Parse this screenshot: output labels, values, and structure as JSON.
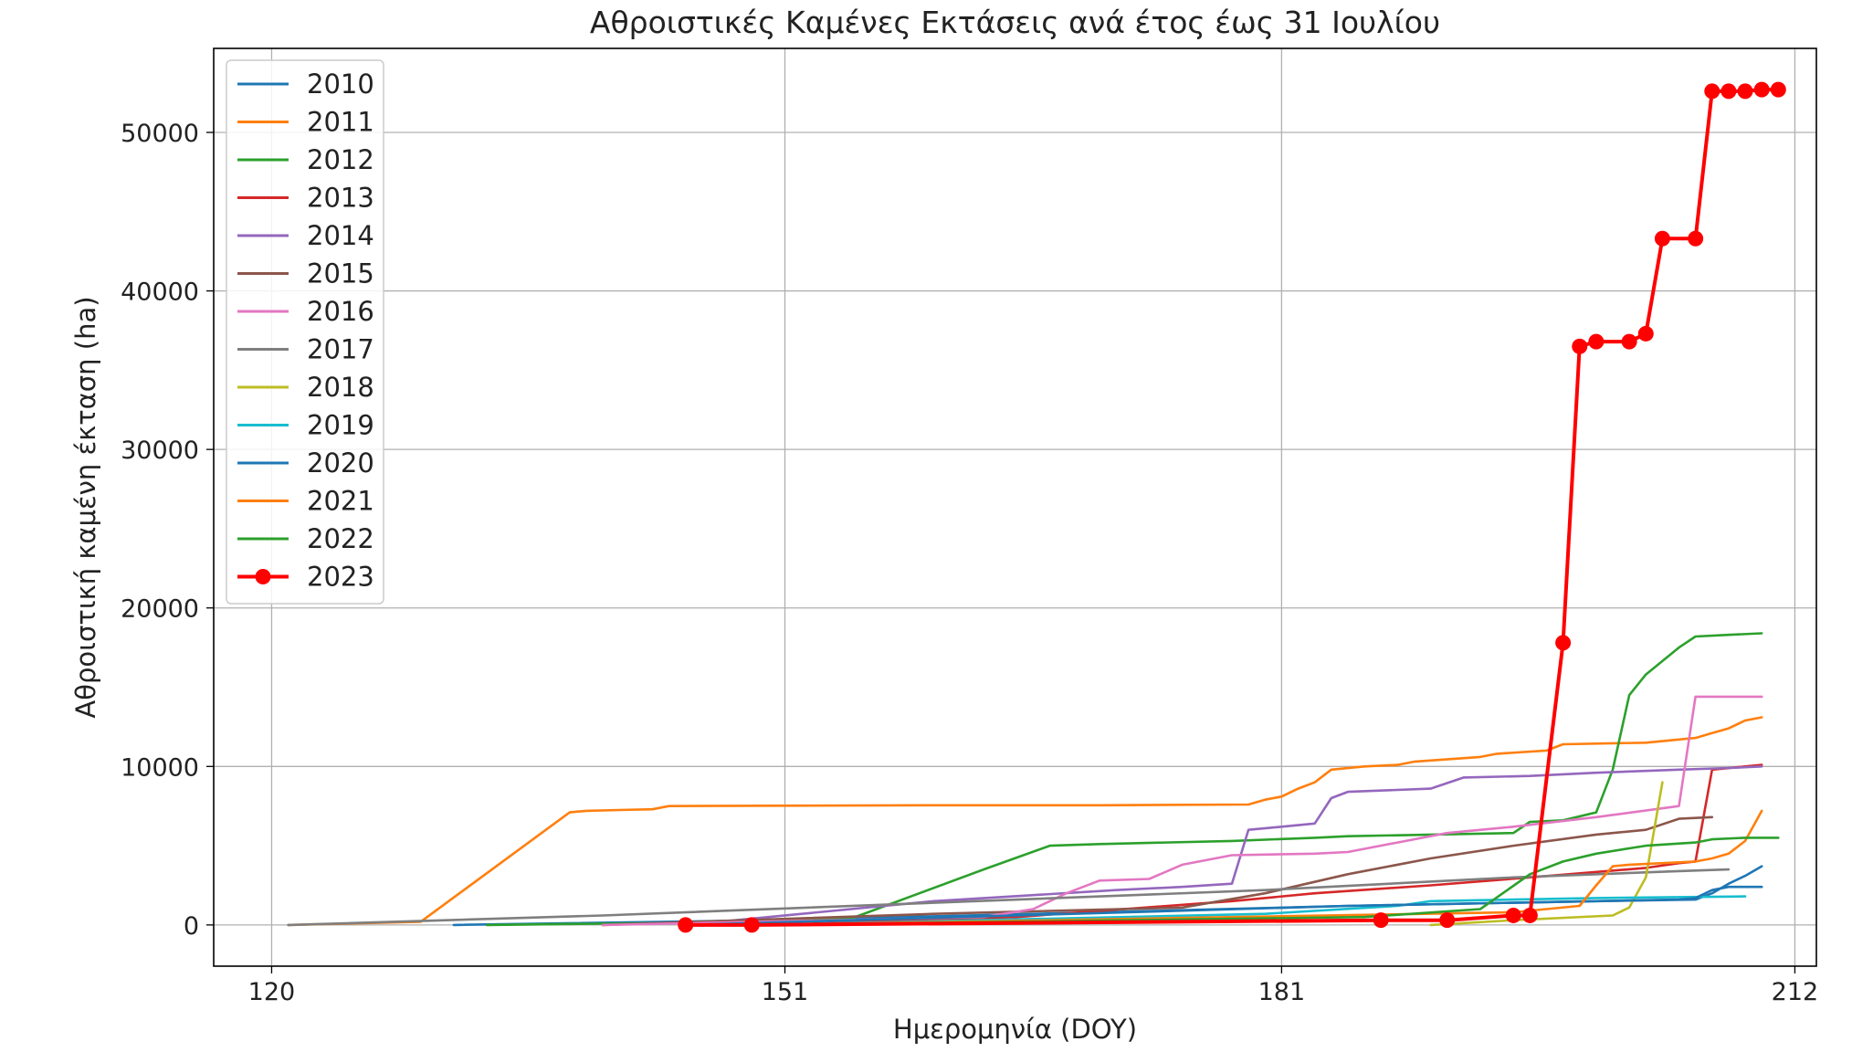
{
  "chart_data": {
    "type": "line",
    "title": "Αθροιστικές Καμένες Εκτάσεις ανά έτος έως 31 Ιουλίου",
    "xlabel": "Ημερομηνία (DOY)",
    "ylabel": "Αθροιστική καμένη έκταση (ha)",
    "xlim": [
      116.5,
      213.3
    ],
    "ylim": [
      -2600,
      55300
    ],
    "xticks": [
      120,
      151,
      181,
      212
    ],
    "yticks": [
      0,
      10000,
      20000,
      30000,
      40000,
      50000
    ],
    "xtick_labels": [
      "120",
      "151",
      "181",
      "212"
    ],
    "ytick_labels": [
      "0",
      "10000",
      "20000",
      "30000",
      "40000",
      "50000"
    ],
    "grid": true,
    "legend_position": "upper-left",
    "series": [
      {
        "name": "2010",
        "color": "#1f77b4",
        "markers": false,
        "x": [
          131,
          150,
          170,
          185,
          200,
          206,
          207,
          208,
          209,
          210
        ],
        "y": [
          0,
          300,
          800,
          1200,
          1500,
          1600,
          2000,
          2600,
          3100,
          3700
        ]
      },
      {
        "name": "2011",
        "color": "#ff7f0e",
        "markers": false,
        "x": [
          121,
          129,
          138,
          139,
          141,
          143,
          144,
          160,
          170,
          179,
          180,
          181,
          182,
          183,
          184,
          186,
          188,
          189,
          193,
          194,
          197,
          198,
          203,
          206,
          207,
          208,
          209,
          210
        ],
        "y": [
          0,
          200,
          7100,
          7200,
          7250,
          7300,
          7500,
          7550,
          7550,
          7600,
          7900,
          8100,
          8600,
          9000,
          9800,
          10000,
          10100,
          10300,
          10600,
          10800,
          11000,
          11400,
          11500,
          11800,
          12100,
          12400,
          12900,
          13100
        ]
      },
      {
        "name": "2012",
        "color": "#2ca02c",
        "markers": false,
        "x": [
          133,
          150,
          155,
          163,
          167,
          170,
          178,
          183,
          185,
          195,
          196,
          198,
          200,
          201,
          202,
          203,
          205,
          206,
          208,
          210
        ],
        "y": [
          0,
          200,
          400,
          3500,
          5000,
          5100,
          5300,
          5500,
          5600,
          5800,
          6500,
          6600,
          7100,
          9800,
          14500,
          15800,
          17500,
          18200,
          18300,
          18400
        ]
      },
      {
        "name": "2013",
        "color": "#d62728",
        "markers": false,
        "x": [
          150,
          165,
          178,
          183,
          190,
          196,
          203,
          205,
          206,
          207,
          209,
          210
        ],
        "y": [
          0,
          500,
          1500,
          2000,
          2500,
          3000,
          3600,
          3900,
          4000,
          9800,
          10000,
          10100
        ]
      },
      {
        "name": "2014",
        "color": "#9467bd",
        "markers": false,
        "x": [
          145,
          160,
          171,
          175,
          178,
          179,
          181,
          183,
          184,
          185,
          190,
          192,
          196,
          200,
          205,
          208,
          210
        ],
        "y": [
          0,
          1500,
          2200,
          2400,
          2600,
          6000,
          6200,
          6400,
          8000,
          8400,
          8600,
          9300,
          9400,
          9600,
          9800,
          9900,
          10000
        ]
      },
      {
        "name": "2015",
        "color": "#8c564b",
        "markers": false,
        "x": [
          140,
          160,
          175,
          180,
          185,
          190,
          195,
          200,
          203,
          205,
          207
        ],
        "y": [
          0,
          700,
          1100,
          2000,
          3200,
          4200,
          5000,
          5700,
          6000,
          6700,
          6800
        ]
      },
      {
        "name": "2016",
        "color": "#e377c2",
        "markers": false,
        "x": [
          140,
          163,
          166,
          168,
          170,
          173,
          175,
          178,
          183,
          185,
          188,
          191,
          195,
          200,
          205,
          206,
          207,
          210
        ],
        "y": [
          0,
          500,
          1000,
          2000,
          2800,
          2900,
          3800,
          4400,
          4500,
          4600,
          5200,
          5800,
          6200,
          6800,
          7500,
          14400,
          14400,
          14400
        ]
      },
      {
        "name": "2017",
        "color": "#7f7f7f",
        "markers": false,
        "x": [
          121,
          140,
          160,
          180,
          195,
          205,
          208
        ],
        "y": [
          0,
          600,
          1400,
          2200,
          3000,
          3400,
          3500
        ]
      },
      {
        "name": "2018",
        "color": "#bcbd22",
        "markers": false,
        "x": [
          190,
          195,
          201,
          202,
          203,
          204
        ],
        "y": [
          0,
          300,
          600,
          1100,
          3000,
          9000
        ]
      },
      {
        "name": "2019",
        "color": "#17becf",
        "markers": false,
        "x": [
          150,
          180,
          188,
          190,
          200,
          209
        ],
        "y": [
          0,
          700,
          1200,
          1500,
          1700,
          1800
        ]
      },
      {
        "name": "2020",
        "color": "#1f77b4",
        "markers": false,
        "x": [
          145,
          185,
          200,
          205,
          206,
          207,
          208,
          209,
          210
        ],
        "y": [
          0,
          1200,
          1500,
          1600,
          1700,
          2200,
          2400,
          2400,
          2400
        ]
      },
      {
        "name": "2021",
        "color": "#ff7f0e",
        "markers": false,
        "x": [
          150,
          195,
          199,
          200,
          201,
          202,
          206,
          207,
          208,
          209,
          210
        ],
        "y": [
          0,
          800,
          1200,
          2500,
          3700,
          3800,
          4000,
          4200,
          4500,
          5300,
          7200
        ]
      },
      {
        "name": "2022",
        "color": "#2ca02c",
        "markers": false,
        "x": [
          150,
          186,
          193,
          196,
          198,
          200,
          203,
          206,
          207,
          209,
          211
        ],
        "y": [
          0,
          500,
          1000,
          3200,
          4000,
          4500,
          5000,
          5200,
          5400,
          5500,
          5500
        ]
      },
      {
        "name": "2023",
        "color": "#ff0000",
        "markers": true,
        "x": [
          145,
          149,
          187,
          191,
          195,
          196,
          198,
          199,
          200,
          202,
          203,
          204,
          206,
          207,
          208,
          209,
          210,
          211
        ],
        "y": [
          0,
          0,
          300,
          300,
          600,
          600,
          17800,
          36500,
          36800,
          36800,
          37300,
          43300,
          43300,
          52600,
          52600,
          52600,
          52700,
          52700
        ]
      }
    ]
  }
}
